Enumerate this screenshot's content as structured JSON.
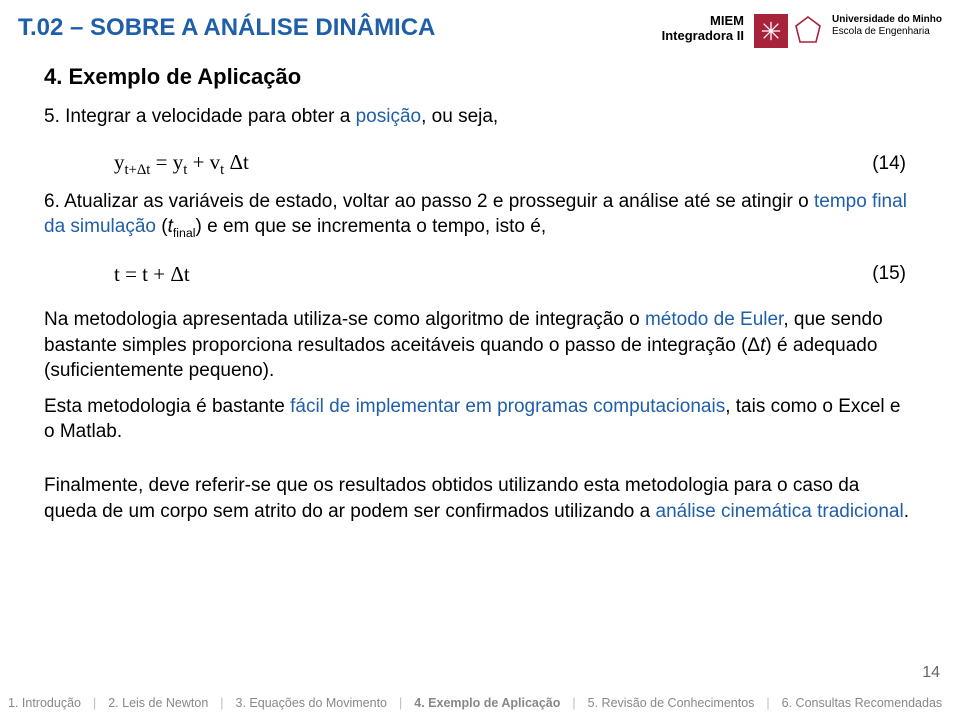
{
  "header": {
    "title": "T.02 – SOBRE A ANÁLISE DINÂMICA",
    "miem_line1": "MIEM",
    "miem_line2": "Integradora II",
    "uni_line1": "Universidade do Minho",
    "uni_line2": "Escola de Engenharia"
  },
  "subtitle": "4. Exemplo de Aplicação",
  "step5": {
    "num": "5.",
    "text_a": "Integrar a velocidade para obter a ",
    "text_blue": "posição",
    "text_b": ", ou seja,"
  },
  "eq14": {
    "formula_html": "y<sub>t+Δt</sub> = y<sub>t</sub> + v<sub>t</sub> Δt",
    "num": "(14)"
  },
  "step6": {
    "num": "6.",
    "text_a": "Atualizar as variáveis de estado, voltar ao passo 2 e prosseguir a análise até se atingir o ",
    "blue1": "tempo final da simulação",
    "text_b": " (",
    "italic": "t",
    "sub": "final",
    "text_c": ") e em que se incrementa o tempo, isto é,"
  },
  "eq15": {
    "formula_html": "t = t + Δt",
    "num": "(15)"
  },
  "para1": {
    "a": "Na metodologia apresentada utiliza-se como algoritmo de integração o ",
    "blue": "método de Euler",
    "b": ", que sendo bastante simples proporciona resultados aceitáveis quando o passo de integração (Δ",
    "it": "t",
    "c": ") é adequado (suficientemente pequeno)."
  },
  "para2": {
    "a": "Esta metodologia é bastante ",
    "blue": "fácil de implementar em programas computacionais",
    "b": ", tais como o Excel e o Matlab."
  },
  "para3": {
    "a": "Finalmente, deve referir-se que os resultados obtidos utilizando esta metodologia para o caso da queda de um corpo sem atrito do ar podem ser confirmados utilizando a ",
    "blue": "análise cinemática tradicional",
    "b": "."
  },
  "page_num": "14",
  "footer": {
    "items": [
      "1. Introdução",
      "2. Leis de Newton",
      "3. Equações do Movimento",
      "4. Exemplo de Aplicação",
      "5. Revisão de Conhecimentos",
      "6. Consultas Recomendadas"
    ],
    "active_index": 3
  },
  "colors": {
    "title_blue": "#1f5ea8",
    "logo_bg": "#a7223b",
    "footer_gray": "#888888"
  }
}
